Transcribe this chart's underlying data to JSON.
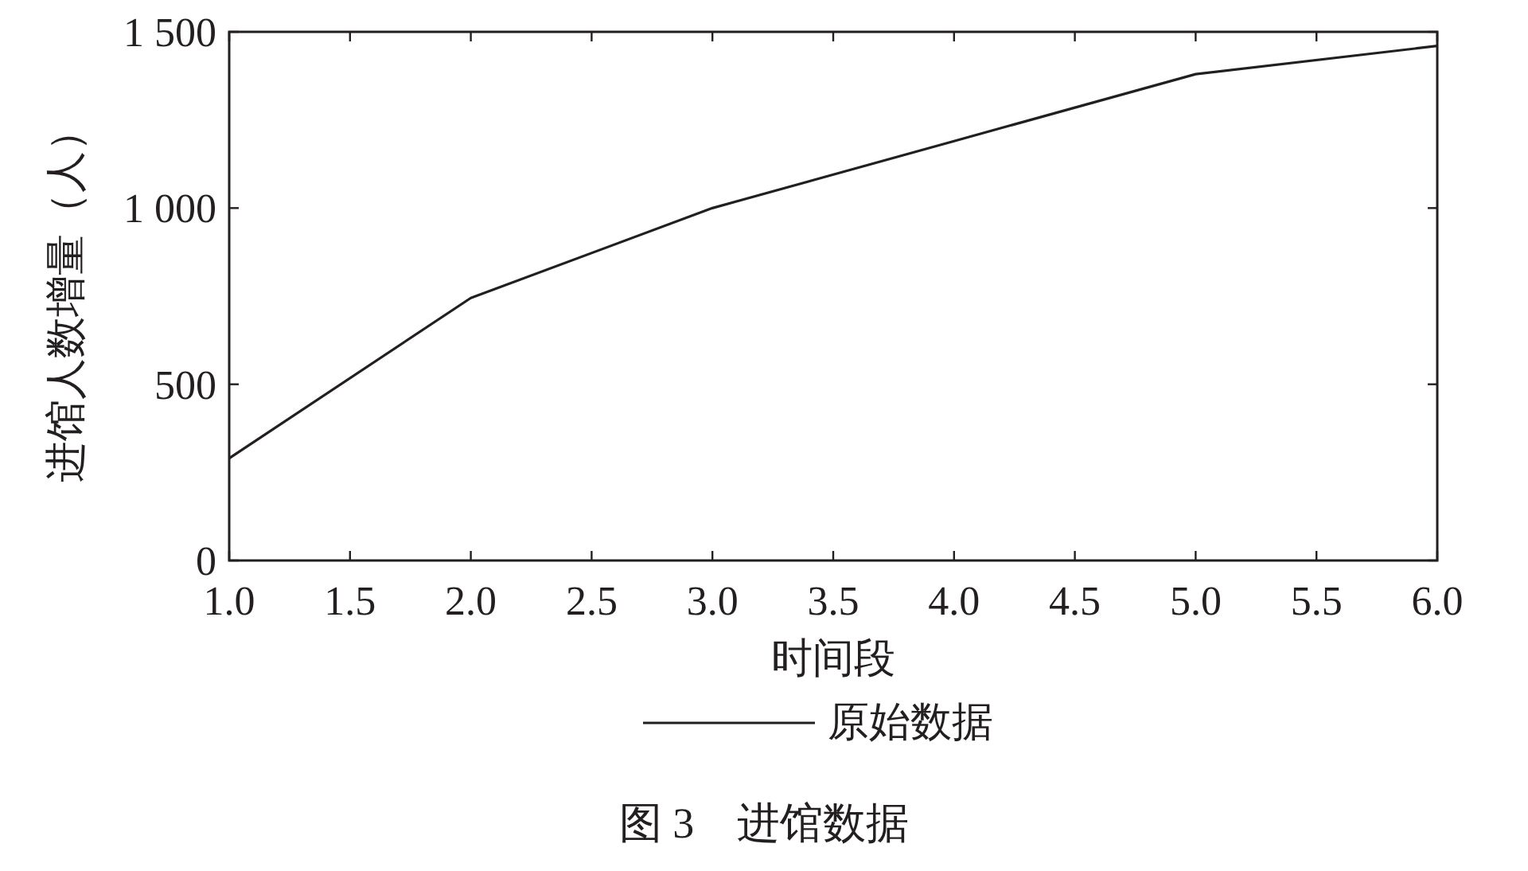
{
  "chart_data": {
    "type": "line",
    "xlabel": "时间段",
    "ylabel": "进馆人数增量（人）",
    "x": [
      1,
      2,
      3,
      4,
      5,
      6
    ],
    "series": [
      {
        "name": "原始数据",
        "color": "#231f20",
        "values": [
          290,
          745,
          1000,
          1190,
          1380,
          1460
        ]
      }
    ],
    "xlim": [
      1,
      6
    ],
    "ylim": [
      0,
      1500
    ],
    "xticks": [
      {
        "value": 1,
        "label": "1.0"
      },
      {
        "value": 1.5,
        "label": "1.5"
      },
      {
        "value": 2,
        "label": "2.0"
      },
      {
        "value": 2.5,
        "label": "2.5"
      },
      {
        "value": 3,
        "label": "3.0"
      },
      {
        "value": 3.5,
        "label": "3.5"
      },
      {
        "value": 4,
        "label": "4.0"
      },
      {
        "value": 4.5,
        "label": "4.5"
      },
      {
        "value": 5,
        "label": "5.0"
      },
      {
        "value": 5.5,
        "label": "5.5"
      },
      {
        "value": 6,
        "label": "6.0"
      }
    ],
    "yticks": [
      0,
      500,
      {
        "value": 1000,
        "label": "1 000"
      },
      {
        "value": 1500,
        "label": "1 500"
      }
    ],
    "legend": "bottom",
    "grid": false,
    "annotations": [
      "图 3　进馆数据"
    ]
  }
}
